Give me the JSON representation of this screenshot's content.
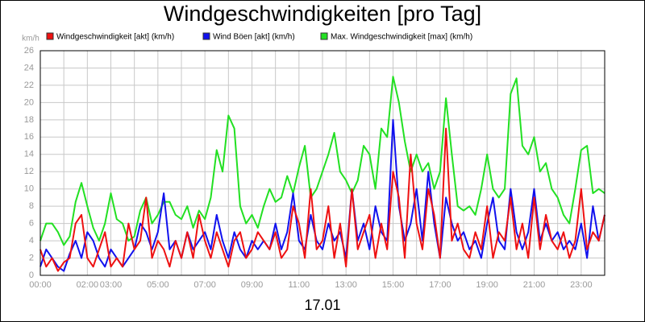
{
  "chart_data": {
    "type": "line",
    "title": "Windgeschwindigkeiten [pro Tag]",
    "y_unit": "km/h",
    "x_label": "17.01",
    "x": [
      0,
      0.25,
      0.5,
      0.75,
      1,
      1.25,
      1.5,
      1.75,
      2,
      2.25,
      2.5,
      2.75,
      3,
      3.25,
      3.5,
      3.75,
      4,
      4.25,
      4.5,
      4.75,
      5,
      5.25,
      5.5,
      5.75,
      6,
      6.25,
      6.5,
      6.75,
      7,
      7.25,
      7.5,
      7.75,
      8,
      8.25,
      8.5,
      8.75,
      9,
      9.25,
      9.5,
      9.75,
      10,
      10.25,
      10.5,
      10.75,
      11,
      11.25,
      11.5,
      11.75,
      12,
      12.25,
      12.5,
      12.75,
      13,
      13.25,
      13.5,
      13.75,
      14,
      14.25,
      14.5,
      14.75,
      15,
      15.25,
      15.5,
      15.75,
      16,
      16.25,
      16.5,
      16.75,
      17,
      17.25,
      17.5,
      17.75,
      18,
      18.25,
      18.5,
      18.75,
      19,
      19.25,
      19.5,
      19.75,
      20,
      20.25,
      20.5,
      20.75,
      21,
      21.25,
      21.5,
      21.75,
      22,
      22.25,
      22.5,
      22.75,
      23,
      23.25,
      23.5,
      23.75,
      24
    ],
    "series": [
      {
        "name": "Windgeschwindigkeit [akt] (km/h)",
        "color": "#ee1111",
        "values": [
          3,
          1,
          2,
          0.5,
          1.5,
          2,
          6,
          7,
          2,
          1,
          3,
          5,
          1,
          2,
          1,
          6,
          3,
          4,
          9,
          2,
          4,
          3,
          1,
          4,
          2,
          5,
          2,
          7,
          4,
          2,
          5,
          3,
          1,
          4,
          5,
          2,
          3,
          5,
          4,
          3,
          5,
          2,
          3,
          8,
          6,
          2,
          10,
          3,
          4,
          8,
          2,
          6,
          1,
          10,
          3,
          5,
          7,
          2,
          6,
          3,
          12,
          9,
          2,
          14,
          6,
          3,
          10,
          7,
          2,
          17,
          4,
          6,
          3,
          2,
          5,
          3,
          8,
          2,
          5,
          4,
          9,
          3,
          6,
          2,
          9,
          3,
          7,
          4,
          3,
          5,
          2,
          4,
          10,
          3,
          5,
          4,
          7
        ]
      },
      {
        "name": "Wind Böen [akt] (km/h)",
        "color": "#1111ee",
        "values": [
          1,
          3,
          2,
          1,
          0.5,
          2.5,
          4,
          2,
          5,
          4,
          2,
          1,
          3,
          2,
          1,
          2,
          3,
          6,
          5,
          3,
          5,
          9.5,
          3,
          4,
          2,
          5,
          3,
          4,
          5,
          3,
          7,
          4,
          2,
          5,
          3,
          2,
          4,
          3,
          4,
          3,
          6,
          3,
          5,
          9.5,
          4,
          3,
          7,
          4,
          3,
          6,
          4,
          5,
          2,
          10,
          4,
          6,
          3,
          8,
          5,
          4,
          18,
          8,
          4,
          6,
          10,
          4,
          12,
          6,
          2,
          9,
          6,
          4,
          5,
          3,
          4,
          2,
          6,
          9,
          4,
          3,
          10,
          5,
          3,
          5,
          10,
          4,
          6,
          4,
          5,
          3,
          4,
          3,
          6,
          2,
          8,
          4,
          7
        ]
      },
      {
        "name": "Max. Windgeschwindigkeit [max] (km/h)",
        "color": "#22e022",
        "values": [
          4,
          6,
          6,
          5,
          3.5,
          4.5,
          8.5,
          10.7,
          8,
          5.5,
          4,
          6,
          9.5,
          6.5,
          6,
          4,
          4.5,
          7.5,
          9,
          6,
          7,
          8.5,
          8.5,
          7,
          6.5,
          8,
          5.5,
          7.5,
          6.5,
          9,
          14.5,
          12,
          18.5,
          17,
          8,
          6,
          7,
          5.5,
          8,
          10,
          8.5,
          9,
          11.5,
          9.5,
          12.5,
          15,
          9,
          10,
          12,
          14,
          16.5,
          12,
          11,
          9.5,
          11,
          15,
          14,
          10,
          17,
          16,
          23,
          20,
          15.5,
          12,
          14,
          12,
          13,
          10,
          12,
          20.5,
          14,
          8,
          7.5,
          8,
          7,
          10,
          14,
          10,
          9,
          10,
          21,
          22.8,
          15,
          14,
          16,
          12,
          13,
          10,
          9,
          7,
          6,
          10,
          14.5,
          15,
          9.5,
          10,
          9.5
        ]
      }
    ],
    "xlim": [
      0,
      24
    ],
    "xticks": [
      {
        "value": 0,
        "label": "00:00"
      },
      {
        "value": 1,
        "label": null
      },
      {
        "value": 2,
        "label": "02:00"
      },
      {
        "value": 3,
        "label": "03:00"
      },
      {
        "value": 4,
        "label": null
      },
      {
        "value": 5,
        "label": "05:00"
      },
      {
        "value": 6,
        "label": null
      },
      {
        "value": 7,
        "label": "07:00"
      },
      {
        "value": 8,
        "label": null
      },
      {
        "value": 9,
        "label": "09:00"
      },
      {
        "value": 10,
        "label": null
      },
      {
        "value": 11,
        "label": "11:00"
      },
      {
        "value": 12,
        "label": null
      },
      {
        "value": 13,
        "label": "13:00"
      },
      {
        "value": 14,
        "label": null
      },
      {
        "value": 15,
        "label": "15:00"
      },
      {
        "value": 16,
        "label": null
      },
      {
        "value": 17,
        "label": "17:00"
      },
      {
        "value": 18,
        "label": null
      },
      {
        "value": 19,
        "label": "19:00"
      },
      {
        "value": 20,
        "label": null
      },
      {
        "value": 21,
        "label": "21:00"
      },
      {
        "value": 22,
        "label": null
      },
      {
        "value": 23,
        "label": "23:00"
      },
      {
        "value": 24,
        "label": null
      }
    ],
    "ylim": [
      0,
      26
    ],
    "yticks": [
      0,
      2,
      4,
      6,
      8,
      10,
      12,
      14,
      16,
      18,
      20,
      22,
      24,
      26
    ],
    "grid": true
  }
}
